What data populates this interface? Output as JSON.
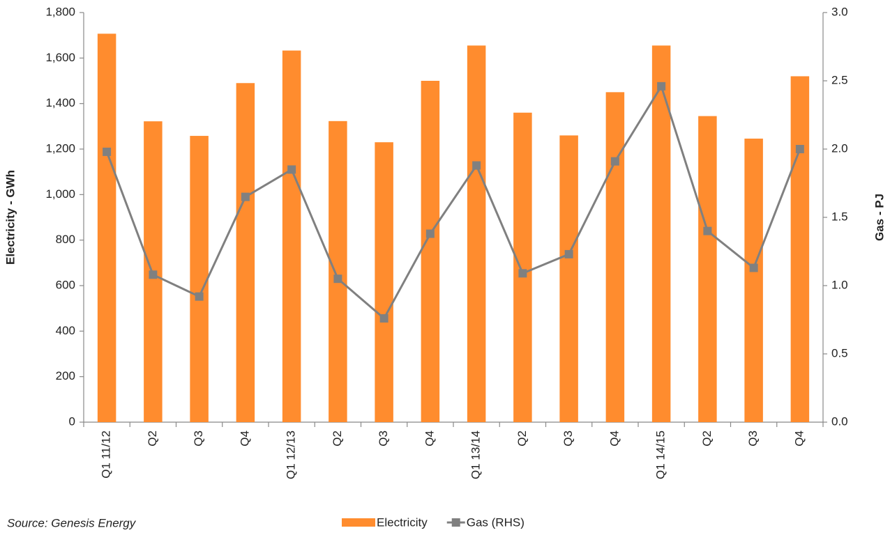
{
  "chart_data": {
    "type": "bar",
    "categories": [
      "Q1 11/12",
      "Q2",
      "Q3",
      "Q4",
      "Q1 12/13",
      "Q2",
      "Q3",
      "Q4",
      "Q1 13/14",
      "Q2",
      "Q3",
      "Q4",
      "Q1 14/15",
      "Q2",
      "Q3",
      "Q4"
    ],
    "series": [
      {
        "name": "Electricity",
        "type": "bar",
        "color": "#ff8c2e",
        "values": [
          1707,
          1322,
          1258,
          1490,
          1633,
          1323,
          1230,
          1500,
          1655,
          1360,
          1260,
          1450,
          1655,
          1345,
          1246,
          1520
        ]
      },
      {
        "name": "Gas (RHS)",
        "type": "line",
        "axis": "y2",
        "color": "#808080",
        "values": [
          1.98,
          1.08,
          0.92,
          1.65,
          1.85,
          1.05,
          0.76,
          1.38,
          1.88,
          1.09,
          1.23,
          1.91,
          2.46,
          1.4,
          1.13,
          2.0
        ]
      }
    ],
    "ylabel": "Electricity - GWh",
    "y2label": "Gas - PJ",
    "ylim": [
      0,
      1800
    ],
    "yticks": [
      0,
      200,
      400,
      600,
      800,
      {
        "value": 1000,
        "label": "1,000"
      },
      {
        "value": 1200,
        "label": "1,200"
      },
      {
        "value": 1400,
        "label": "1,400"
      },
      {
        "value": 1600,
        "label": "1,600"
      },
      {
        "value": 1800,
        "label": "1,800"
      }
    ],
    "y2lim": [
      0,
      3
    ],
    "y2ticks": [
      {
        "value": 0,
        "label": "0.0"
      },
      0.5,
      {
        "value": 1,
        "label": "1.0"
      },
      1.5,
      {
        "value": 2,
        "label": "2.0"
      },
      2.5,
      {
        "value": 3,
        "label": "3.0"
      }
    ],
    "source": "Source: Genesis Energy",
    "grid": false,
    "legend": "bottom"
  }
}
